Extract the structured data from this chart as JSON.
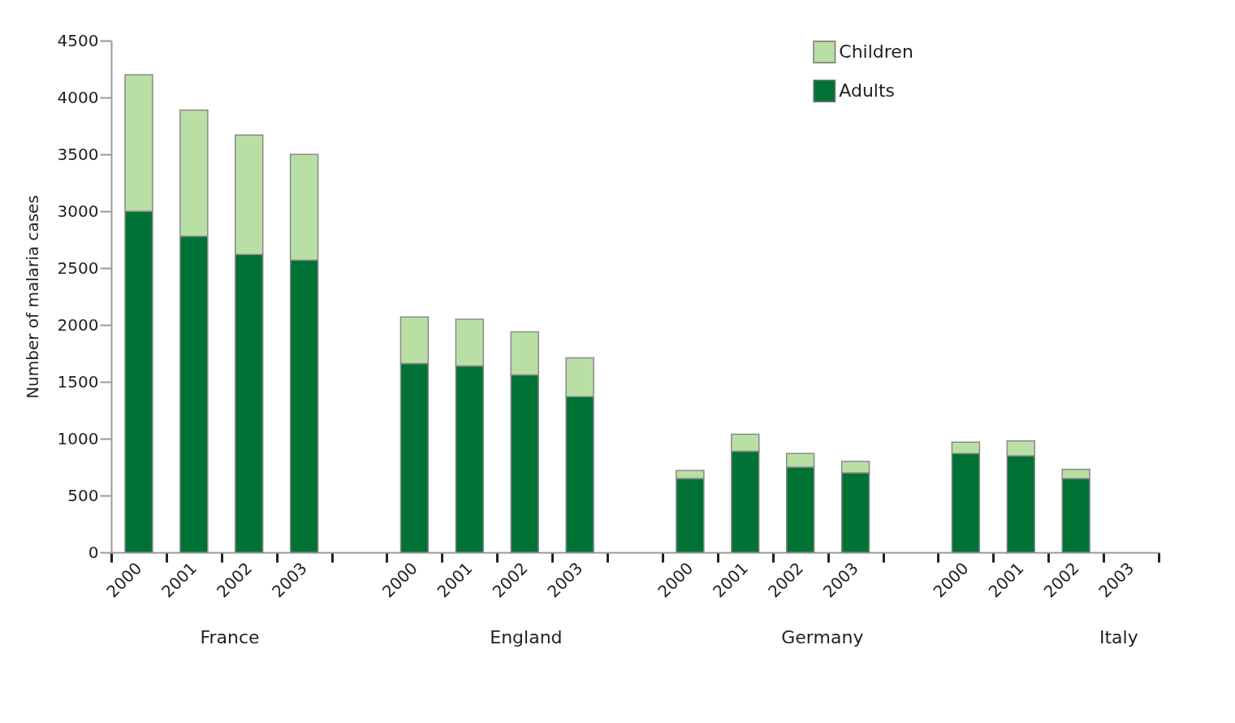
{
  "chart_data": {
    "type": "bar",
    "stacked": true,
    "ylabel": "Number of malaria cases",
    "categories": [
      "2000",
      "2001",
      "2002",
      "2003",
      null,
      "2000",
      "2001",
      "2002",
      "2003",
      null,
      "2000",
      "2001",
      "2002",
      "2003",
      null,
      "2000",
      "2001",
      "2002",
      "2003"
    ],
    "series": [
      {
        "name": "Adults",
        "color": "#007236",
        "values": [
          3000,
          2780,
          2620,
          2570,
          null,
          1660,
          1640,
          1560,
          1370,
          null,
          650,
          890,
          750,
          700,
          null,
          870,
          850,
          650,
          null
        ]
      },
      {
        "name": "Children",
        "color": "#b9dfa5",
        "values": [
          1200,
          1110,
          1050,
          930,
          null,
          410,
          410,
          380,
          340,
          null,
          70,
          150,
          120,
          100,
          null,
          100,
          130,
          80,
          null
        ]
      }
    ],
    "ylim": [
      0,
      4500
    ],
    "yticks": [
      0,
      500,
      1000,
      1500,
      2000,
      2500,
      3000,
      3500,
      4000,
      4500
    ],
    "annotations": [
      "France",
      "England",
      "Germany",
      "Italy"
    ],
    "grid": false,
    "legend": "top right"
  }
}
